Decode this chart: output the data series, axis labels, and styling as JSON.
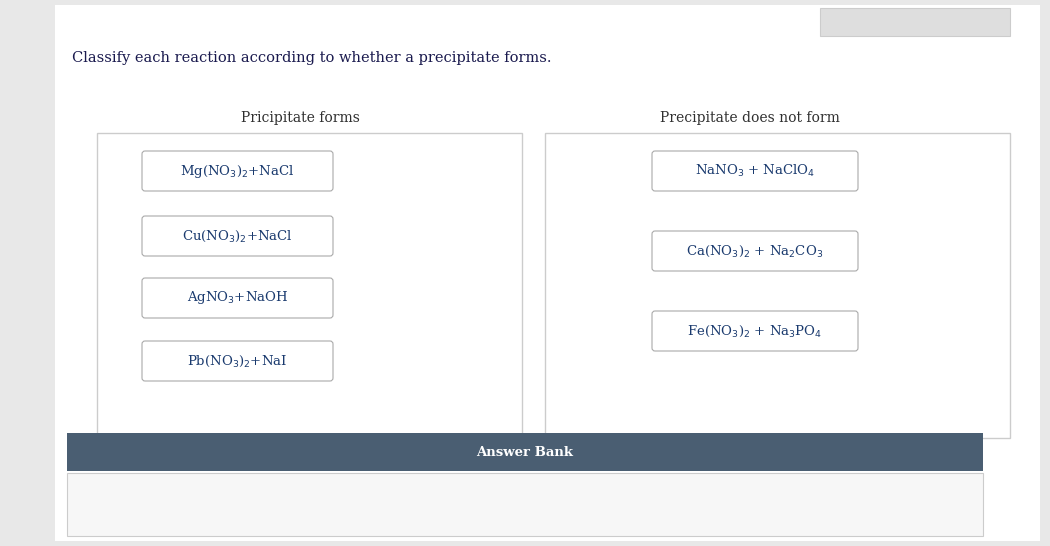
{
  "title": "Classify each reaction according to whether a precipitate forms.",
  "title_color": "#1a1a4e",
  "title_fontsize": 10.5,
  "col1_header": "Pricipitate forms",
  "col2_header": "Precipitate does not form",
  "header_fontsize": 10,
  "header_color": "#2F2F2F",
  "page_bg": "#FFFFFF",
  "outer_bg": "#E8E8E8",
  "box_bg": "#FFFFFF",
  "box_border": "#BBBBBB",
  "item_bg": "#FFFFFF",
  "item_border": "#AAAAAA",
  "answer_bank_bg": "#4A5E72",
  "answer_bank_text": "#FFFFFF",
  "answer_bank_label": "Answer Bank",
  "answer_bank_bottom_bg": "#F7F7F7",
  "precipitate_forms": [
    "Mg(NO$_3$)$_2$+NaCl",
    "Cu(NO$_3$)$_2$+NaCl",
    "AgNO$_3$+NaOH",
    "Pb(NO$_3$)$_2$+NaI"
  ],
  "precipitate_not_forms": [
    "NaNO$_3$ + NaClO$_4$",
    "Ca(NO$_3$)$_2$ + Na$_2$CO$_3$",
    "Fe(NO$_3$)$_2$ + Na$_3$PO$_4$"
  ],
  "item_fontsize": 9.5,
  "item_text_color": "#1a3a6e",
  "top_bar_color": "#DEDEDE",
  "top_bar_border": "#CCCCCC"
}
